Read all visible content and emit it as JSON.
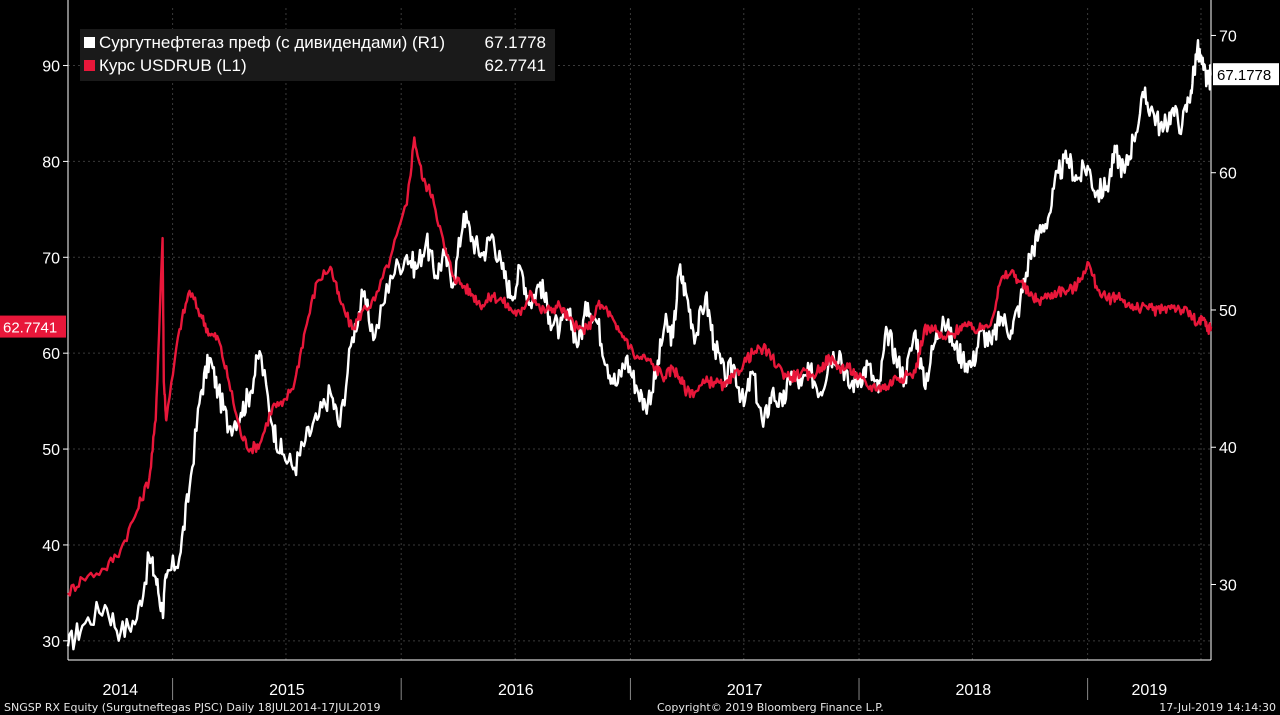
{
  "legend": {
    "series1_label": "Сургутнефтегаз преф (с дивидендами) (R1)",
    "series1_value": "67.1778",
    "series2_label": "Курс USDRUB (L1)",
    "series2_value": "62.7741"
  },
  "footer": {
    "left": "SNGSP RX Equity (Surgutneftegas PJSC)  Daily 18JUL2014-17JUL2019",
    "center": "Copyright© 2019 Bloomberg Finance L.P.",
    "right": "17-Jul-2019 14:14:30"
  },
  "colors": {
    "background": "#000000",
    "grid": "#3a3a3a",
    "axis": "#ffffff",
    "white_series": "#ffffff",
    "red_series": "#e8173a"
  },
  "chart_data": {
    "type": "line",
    "x_axis": {
      "type": "date",
      "range": [
        "2014-07-18",
        "2019-07-17"
      ],
      "year_labels": [
        "2014",
        "2015",
        "2016",
        "2017",
        "2018",
        "2019"
      ]
    },
    "y_left": {
      "range": [
        28,
        96
      ],
      "ticks": [
        30,
        40,
        50,
        60,
        70,
        80,
        90
      ],
      "current_label": "62.7741"
    },
    "y_right": {
      "range": [
        24.5,
        72
      ],
      "ticks": [
        30,
        40,
        50,
        60,
        70
      ],
      "current_label": "67.1778"
    },
    "grid": true,
    "legend_position": "top-left",
    "series": [
      {
        "name": "Сургутнефтегаз преф (с дивидендами) (R1)",
        "axis": "right",
        "color": "#ffffff",
        "points": [
          [
            "2014-07-18",
            25.5
          ],
          [
            "2014-08-10",
            27.0
          ],
          [
            "2014-09-15",
            28.5
          ],
          [
            "2014-10-10",
            26.5
          ],
          [
            "2014-11-05",
            27.5
          ],
          [
            "2014-11-25",
            32.0
          ],
          [
            "2014-12-05",
            30.5
          ],
          [
            "2014-12-16",
            28.0
          ],
          [
            "2014-12-22",
            30.5
          ],
          [
            "2015-01-12",
            32.0
          ],
          [
            "2015-01-28",
            37.0
          ],
          [
            "2015-02-15",
            44.0
          ],
          [
            "2015-03-01",
            46.5
          ],
          [
            "2015-03-15",
            44.0
          ],
          [
            "2015-04-01",
            41.5
          ],
          [
            "2015-04-20",
            42.5
          ],
          [
            "2015-05-05",
            44.0
          ],
          [
            "2015-05-20",
            47.0
          ],
          [
            "2015-06-10",
            41.5
          ],
          [
            "2015-06-25",
            39.5
          ],
          [
            "2015-07-15",
            38.5
          ],
          [
            "2015-08-01",
            40.5
          ],
          [
            "2015-08-20",
            42.0
          ],
          [
            "2015-09-10",
            44.0
          ],
          [
            "2015-09-25",
            41.5
          ],
          [
            "2015-10-15",
            48.0
          ],
          [
            "2015-11-01",
            51.0
          ],
          [
            "2015-11-20",
            48.0
          ],
          [
            "2015-12-15",
            52.5
          ],
          [
            "2016-01-10",
            54.0
          ],
          [
            "2016-01-25",
            53.0
          ],
          [
            "2016-02-10",
            55.0
          ],
          [
            "2016-02-25",
            52.5
          ],
          [
            "2016-03-10",
            54.0
          ],
          [
            "2016-03-25",
            52.0
          ],
          [
            "2016-04-10",
            57.0
          ],
          [
            "2016-04-25",
            55.0
          ],
          [
            "2016-05-10",
            54.0
          ],
          [
            "2016-05-25",
            55.5
          ],
          [
            "2016-06-10",
            53.0
          ],
          [
            "2016-06-25",
            51.0
          ],
          [
            "2016-07-10",
            53.0
          ],
          [
            "2016-07-25",
            50.5
          ],
          [
            "2016-08-10",
            52.0
          ],
          [
            "2016-08-25",
            49.5
          ],
          [
            "2016-09-10",
            48.5
          ],
          [
            "2016-09-25",
            49.5
          ],
          [
            "2016-10-10",
            47.5
          ],
          [
            "2016-10-25",
            50.5
          ],
          [
            "2016-11-10",
            49.0
          ],
          [
            "2016-11-25",
            46.0
          ],
          [
            "2016-12-10",
            44.5
          ],
          [
            "2016-12-25",
            46.5
          ],
          [
            "2017-01-10",
            44.5
          ],
          [
            "2017-01-25",
            43.0
          ],
          [
            "2017-02-10",
            45.0
          ],
          [
            "2017-02-25",
            49.0
          ],
          [
            "2017-03-10",
            48.0
          ],
          [
            "2017-03-20",
            53.0
          ],
          [
            "2017-04-01",
            51.0
          ],
          [
            "2017-04-15",
            48.0
          ],
          [
            "2017-05-01",
            51.0
          ],
          [
            "2017-05-15",
            47.5
          ],
          [
            "2017-06-01",
            45.0
          ],
          [
            "2017-06-15",
            46.0
          ],
          [
            "2017-07-01",
            43.0
          ],
          [
            "2017-07-15",
            45.5
          ],
          [
            "2017-08-01",
            41.5
          ],
          [
            "2017-08-15",
            44.0
          ],
          [
            "2017-09-01",
            43.0
          ],
          [
            "2017-09-15",
            45.5
          ],
          [
            "2017-10-01",
            44.5
          ],
          [
            "2017-10-15",
            45.5
          ],
          [
            "2017-11-01",
            44.0
          ],
          [
            "2017-11-15",
            46.5
          ],
          [
            "2017-12-01",
            47.0
          ],
          [
            "2017-12-15",
            44.5
          ],
          [
            "2018-01-01",
            45.0
          ],
          [
            "2018-01-15",
            46.0
          ],
          [
            "2018-02-01",
            44.0
          ],
          [
            "2018-02-15",
            48.5
          ],
          [
            "2018-03-01",
            46.5
          ],
          [
            "2018-03-15",
            45.0
          ],
          [
            "2018-04-01",
            48.5
          ],
          [
            "2018-04-15",
            44.5
          ],
          [
            "2018-05-01",
            47.5
          ],
          [
            "2018-05-15",
            49.5
          ],
          [
            "2018-06-01",
            47.5
          ],
          [
            "2018-06-15",
            46.5
          ],
          [
            "2018-07-01",
            46.0
          ],
          [
            "2018-07-15",
            48.5
          ],
          [
            "2018-08-01",
            47.5
          ],
          [
            "2018-08-15",
            49.5
          ],
          [
            "2018-09-01",
            48.5
          ],
          [
            "2018-09-15",
            50.5
          ],
          [
            "2018-10-01",
            54.0
          ],
          [
            "2018-10-15",
            55.5
          ],
          [
            "2018-11-01",
            57.0
          ],
          [
            "2018-11-15",
            60.0
          ],
          [
            "2018-12-01",
            61.0
          ],
          [
            "2018-12-15",
            59.5
          ],
          [
            "2019-01-01",
            60.5
          ],
          [
            "2019-01-15",
            58.5
          ],
          [
            "2019-02-01",
            59.0
          ],
          [
            "2019-02-15",
            61.5
          ],
          [
            "2019-03-01",
            60.0
          ],
          [
            "2019-03-15",
            62.5
          ],
          [
            "2019-04-01",
            65.5
          ],
          [
            "2019-04-15",
            64.5
          ],
          [
            "2019-05-01",
            63.0
          ],
          [
            "2019-05-15",
            64.5
          ],
          [
            "2019-06-01",
            63.5
          ],
          [
            "2019-06-15",
            66.0
          ],
          [
            "2019-06-25",
            69.0
          ],
          [
            "2019-07-05",
            67.5
          ],
          [
            "2019-07-12",
            66.5
          ],
          [
            "2019-07-17",
            67.1778
          ]
        ]
      },
      {
        "name": "Курс USDRUB (L1)",
        "axis": "left",
        "color": "#e8173a",
        "points": [
          [
            "2014-07-18",
            35.0
          ],
          [
            "2014-08-10",
            36.5
          ],
          [
            "2014-09-15",
            37.5
          ],
          [
            "2014-10-10",
            39.5
          ],
          [
            "2014-11-05",
            43.5
          ],
          [
            "2014-11-25",
            47.0
          ],
          [
            "2014-12-05",
            53.0
          ],
          [
            "2014-12-16",
            72.0
          ],
          [
            "2014-12-18",
            57.0
          ],
          [
            "2014-12-22",
            53.0
          ],
          [
            "2015-01-12",
            62.5
          ],
          [
            "2015-01-28",
            66.5
          ],
          [
            "2015-02-15",
            64.0
          ],
          [
            "2015-03-01",
            62.0
          ],
          [
            "2015-03-15",
            61.5
          ],
          [
            "2015-04-01",
            57.0
          ],
          [
            "2015-04-20",
            51.5
          ],
          [
            "2015-05-05",
            50.0
          ],
          [
            "2015-05-20",
            50.5
          ],
          [
            "2015-06-10",
            54.5
          ],
          [
            "2015-06-25",
            54.5
          ],
          [
            "2015-07-15",
            57.0
          ],
          [
            "2015-08-01",
            62.5
          ],
          [
            "2015-08-20",
            67.5
          ],
          [
            "2015-09-10",
            69.0
          ],
          [
            "2015-09-25",
            65.5
          ],
          [
            "2015-10-15",
            62.5
          ],
          [
            "2015-11-01",
            64.5
          ],
          [
            "2015-11-20",
            65.5
          ],
          [
            "2015-12-15",
            70.0
          ],
          [
            "2016-01-10",
            75.5
          ],
          [
            "2016-01-22",
            82.5
          ],
          [
            "2016-02-05",
            78.0
          ],
          [
            "2016-02-20",
            76.5
          ],
          [
            "2016-03-10",
            71.0
          ],
          [
            "2016-03-25",
            68.0
          ],
          [
            "2016-04-10",
            67.0
          ],
          [
            "2016-04-25",
            66.0
          ],
          [
            "2016-05-10",
            65.0
          ],
          [
            "2016-05-25",
            66.0
          ],
          [
            "2016-06-10",
            65.5
          ],
          [
            "2016-06-25",
            64.5
          ],
          [
            "2016-07-10",
            64.0
          ],
          [
            "2016-07-25",
            66.5
          ],
          [
            "2016-08-10",
            64.5
          ],
          [
            "2016-08-25",
            64.5
          ],
          [
            "2016-09-10",
            65.0
          ],
          [
            "2016-09-25",
            63.5
          ],
          [
            "2016-10-10",
            62.5
          ],
          [
            "2016-10-25",
            62.5
          ],
          [
            "2016-11-10",
            65.0
          ],
          [
            "2016-11-25",
            64.5
          ],
          [
            "2016-12-10",
            62.5
          ],
          [
            "2016-12-25",
            61.5
          ],
          [
            "2017-01-10",
            59.5
          ],
          [
            "2017-01-25",
            59.5
          ],
          [
            "2017-02-10",
            58.5
          ],
          [
            "2017-02-25",
            57.5
          ],
          [
            "2017-03-10",
            58.5
          ],
          [
            "2017-03-20",
            57.5
          ],
          [
            "2017-04-01",
            56.0
          ],
          [
            "2017-04-15",
            56.0
          ],
          [
            "2017-05-01",
            57.0
          ],
          [
            "2017-05-15",
            57.0
          ],
          [
            "2017-06-01",
            56.5
          ],
          [
            "2017-06-15",
            57.5
          ],
          [
            "2017-07-01",
            59.0
          ],
          [
            "2017-07-15",
            60.0
          ],
          [
            "2017-08-01",
            60.5
          ],
          [
            "2017-08-15",
            59.5
          ],
          [
            "2017-09-01",
            58.0
          ],
          [
            "2017-09-15",
            57.5
          ],
          [
            "2017-10-01",
            58.0
          ],
          [
            "2017-10-15",
            57.5
          ],
          [
            "2017-11-01",
            58.5
          ],
          [
            "2017-11-15",
            59.5
          ],
          [
            "2017-12-01",
            58.5
          ],
          [
            "2017-12-15",
            58.5
          ],
          [
            "2018-01-01",
            57.5
          ],
          [
            "2018-01-15",
            56.5
          ],
          [
            "2018-02-01",
            56.5
          ],
          [
            "2018-02-15",
            56.5
          ],
          [
            "2018-03-01",
            57.5
          ],
          [
            "2018-03-15",
            57.5
          ],
          [
            "2018-04-01",
            58.0
          ],
          [
            "2018-04-15",
            62.5
          ],
          [
            "2018-05-01",
            62.5
          ],
          [
            "2018-05-15",
            61.5
          ],
          [
            "2018-06-01",
            62.0
          ],
          [
            "2018-06-15",
            63.0
          ],
          [
            "2018-07-01",
            62.5
          ],
          [
            "2018-07-15",
            62.5
          ],
          [
            "2018-08-01",
            63.5
          ],
          [
            "2018-08-15",
            67.5
          ],
          [
            "2018-09-01",
            68.5
          ],
          [
            "2018-09-15",
            67.5
          ],
          [
            "2018-10-01",
            66.0
          ],
          [
            "2018-10-15",
            65.5
          ],
          [
            "2018-11-01",
            66.0
          ],
          [
            "2018-11-15",
            66.5
          ],
          [
            "2018-12-01",
            66.5
          ],
          [
            "2018-12-15",
            67.0
          ],
          [
            "2019-01-01",
            69.5
          ],
          [
            "2019-01-15",
            67.0
          ],
          [
            "2019-02-01",
            65.5
          ],
          [
            "2019-02-15",
            66.0
          ],
          [
            "2019-03-01",
            65.5
          ],
          [
            "2019-03-15",
            64.5
          ],
          [
            "2019-04-01",
            65.0
          ],
          [
            "2019-04-15",
            64.5
          ],
          [
            "2019-05-01",
            64.5
          ],
          [
            "2019-05-15",
            65.0
          ],
          [
            "2019-06-01",
            64.5
          ],
          [
            "2019-06-15",
            64.0
          ],
          [
            "2019-06-25",
            63.0
          ],
          [
            "2019-07-05",
            63.5
          ],
          [
            "2019-07-12",
            62.5
          ],
          [
            "2019-07-17",
            62.7741
          ]
        ]
      }
    ]
  }
}
